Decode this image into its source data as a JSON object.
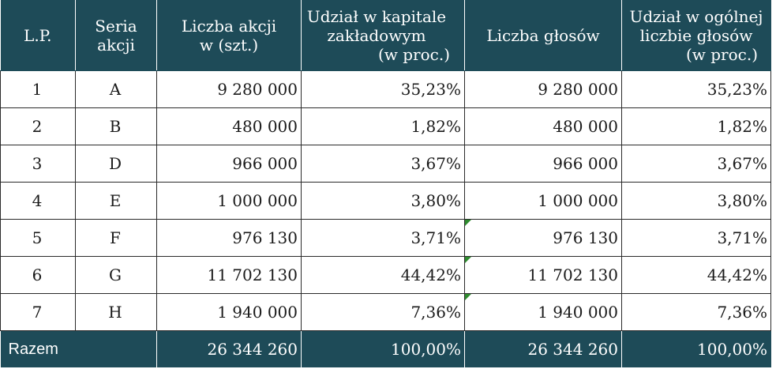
{
  "header": {
    "lp": "L.P.",
    "seria_1": "Seria",
    "seria_2": "akcji",
    "liczba_akcji_1": "Liczba akcji",
    "liczba_akcji_2": "w (szt.)",
    "udzial_kapital_1": "Udział w kapitale",
    "udzial_kapital_2": "zakładowym",
    "udzial_kapital_3": "(w proc.)",
    "liczba_glosow": "Liczba głosów",
    "udzial_glosy_1": "Udział w ogólnej",
    "udzial_glosy_2": "liczbie głosów",
    "udzial_glosy_3": "(w proc.)"
  },
  "rows": [
    {
      "lp": "1",
      "seria": "A",
      "akcje": "9 280 000",
      "udzial_kapital": "35,23%",
      "glosy": "9 280 000",
      "udzial_glosy": "35,23%"
    },
    {
      "lp": "2",
      "seria": "B",
      "akcje": "480 000",
      "udzial_kapital": "1,82%",
      "glosy": "480 000",
      "udzial_glosy": "1,82%"
    },
    {
      "lp": "3",
      "seria": "D",
      "akcje": "966 000",
      "udzial_kapital": "3,67%",
      "glosy": "966 000",
      "udzial_glosy": "3,67%"
    },
    {
      "lp": "4",
      "seria": "E",
      "akcje": "1 000 000",
      "udzial_kapital": "3,80%",
      "glosy": "1 000 000",
      "udzial_glosy": "3,80%"
    },
    {
      "lp": "5",
      "seria": "F",
      "akcje": "976 130",
      "udzial_kapital": "3,71%",
      "glosy": "976 130",
      "udzial_glosy": "3,71%"
    },
    {
      "lp": "6",
      "seria": "G",
      "akcje": "11 702 130",
      "udzial_kapital": "44,42%",
      "glosy": "11 702 130",
      "udzial_glosy": "44,42%"
    },
    {
      "lp": "7",
      "seria": "H",
      "akcje": "1 940 000",
      "udzial_kapital": "7,36%",
      "glosy": "1 940 000",
      "udzial_glosy": "7,36%"
    }
  ],
  "total": {
    "label": "Razem",
    "akcje": "26 344 260",
    "udzial_kapital": "100,00%",
    "glosy": "26 344 260",
    "udzial_glosy": "100,00%"
  },
  "colors": {
    "header_bg": "#1e4b58",
    "header_text": "#ffffff",
    "cell_border": "#2a2a2a",
    "error_flag": "#2e8b2e"
  }
}
